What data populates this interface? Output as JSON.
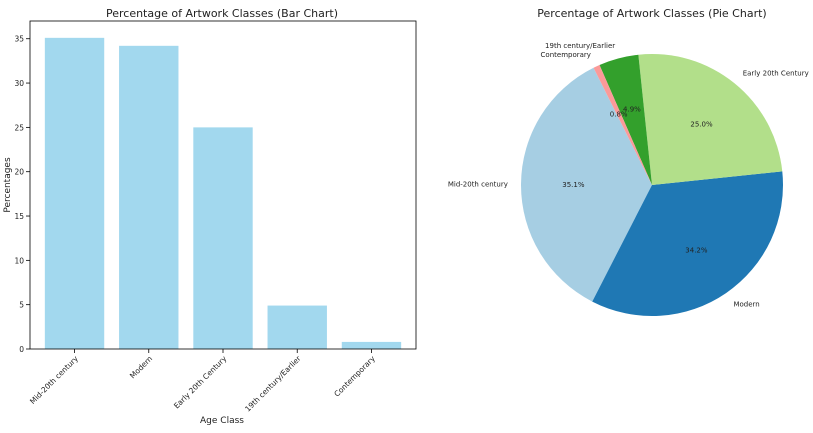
{
  "chart_data": [
    {
      "type": "bar",
      "title": "Percentage of Artwork Classes (Bar Chart)",
      "xlabel": "Age Class",
      "ylabel": "Percentages",
      "categories": [
        "Mid-20th century",
        "Modern",
        "Early 20th Century",
        "19th century/Earlier",
        "Contemporary"
      ],
      "values": [
        35.1,
        34.2,
        25.0,
        4.9,
        0.8
      ],
      "ylim": [
        0,
        37
      ],
      "yticks": [
        0,
        5,
        10,
        15,
        20,
        25,
        30,
        35
      ],
      "bar_color": "#a2d8ee",
      "grid": false
    },
    {
      "type": "pie",
      "title": "Percentage of Artwork Classes (Pie Chart)",
      "slices": [
        {
          "label": "Mid-20th century",
          "value": 35.1,
          "pct_label": "35.1%",
          "color": "#a6cee3"
        },
        {
          "label": "Modern",
          "value": 34.2,
          "pct_label": "34.2%",
          "color": "#1f78b4"
        },
        {
          "label": "Early 20th Century",
          "value": 25.0,
          "pct_label": "25.0%",
          "color": "#b2df8a"
        },
        {
          "label": "19th century/Earlier",
          "value": 4.9,
          "pct_label": "4.9%",
          "color": "#33a02c"
        },
        {
          "label": "Contemporary",
          "value": 0.8,
          "pct_label": "0.8%",
          "color": "#fb9a99"
        }
      ]
    }
  ]
}
